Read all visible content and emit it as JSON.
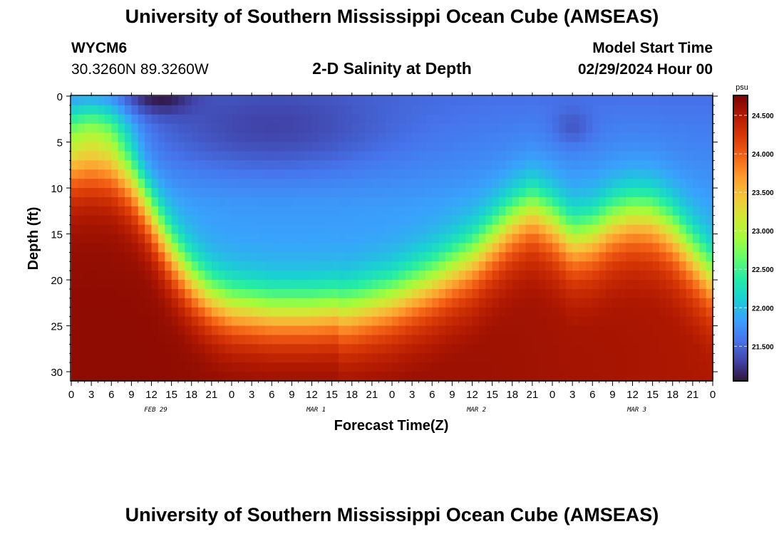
{
  "header": {
    "title": "University of Southern Mississippi Ocean Cube (AMSEAS)",
    "station": "WYCM6",
    "coords": "30.3260N  89.3260W",
    "subtitle": "2-D Salinity at Depth",
    "model_label": "Model Start Time",
    "model_time": "02/29/2024 Hour 00"
  },
  "footer": {
    "title": "University of Southern Mississippi Ocean Cube (AMSEAS)"
  },
  "colors": {
    "ramp": [
      "#30123b",
      "#4145ab",
      "#4675ed",
      "#39a2fc",
      "#1bcfd4",
      "#24eca6",
      "#61fc6c",
      "#a4fc3b",
      "#d1e834",
      "#f3c63a",
      "#fe9b2d",
      "#f36315",
      "#d93806",
      "#b11901",
      "#7a0403"
    ]
  },
  "chart_data": {
    "type": "heatmap",
    "title": "2-D Salinity at Depth",
    "xlabel": "Forecast Time(Z)",
    "ylabel": "Depth (ft)",
    "x_range_hours": [
      0,
      96
    ],
    "x_ticks": [
      "0",
      "3",
      "6",
      "9",
      "12",
      "15",
      "18",
      "21",
      "0",
      "3",
      "6",
      "9",
      "12",
      "15",
      "18",
      "21",
      "0",
      "3",
      "6",
      "9",
      "12",
      "15",
      "18",
      "21",
      "0",
      "3",
      "6",
      "9",
      "12",
      "15",
      "18",
      "21",
      "0"
    ],
    "date_labels": [
      {
        "text": "FEB 29",
        "hour": 12
      },
      {
        "text": "MAR 1",
        "hour": 36
      },
      {
        "text": "MAR 2",
        "hour": 60
      },
      {
        "text": "MAR 3",
        "hour": 84
      }
    ],
    "y_range_ft": [
      0,
      31
    ],
    "y_ticks": [
      "0",
      "5",
      "10",
      "15",
      "20",
      "25",
      "30"
    ],
    "colorbar": {
      "unit": "psu",
      "range": [
        21.05,
        24.75
      ],
      "ticks": [
        "21.500",
        "22.000",
        "22.500",
        "23.000",
        "23.500",
        "24.000",
        "24.500"
      ]
    },
    "halocline_depth_ft": {
      "hours": [
        0,
        3,
        6,
        9,
        12,
        15,
        18,
        21,
        24,
        30,
        36,
        42,
        48,
        54,
        60,
        66,
        69,
        72,
        75,
        78,
        81,
        84,
        87,
        90,
        93,
        96
      ],
      "depth": [
        6.5,
        6,
        6.5,
        9,
        13,
        17,
        20,
        22,
        23,
        23.6,
        23.6,
        23.2,
        22,
        20,
        17.5,
        13.5,
        12.2,
        13.5,
        15.5,
        15,
        13.5,
        12.8,
        13,
        14.5,
        17,
        19.5
      ]
    },
    "salinity_psu": {
      "surface": 21.5,
      "fresh_minimum": 21.1,
      "bottom": 24.6
    }
  }
}
